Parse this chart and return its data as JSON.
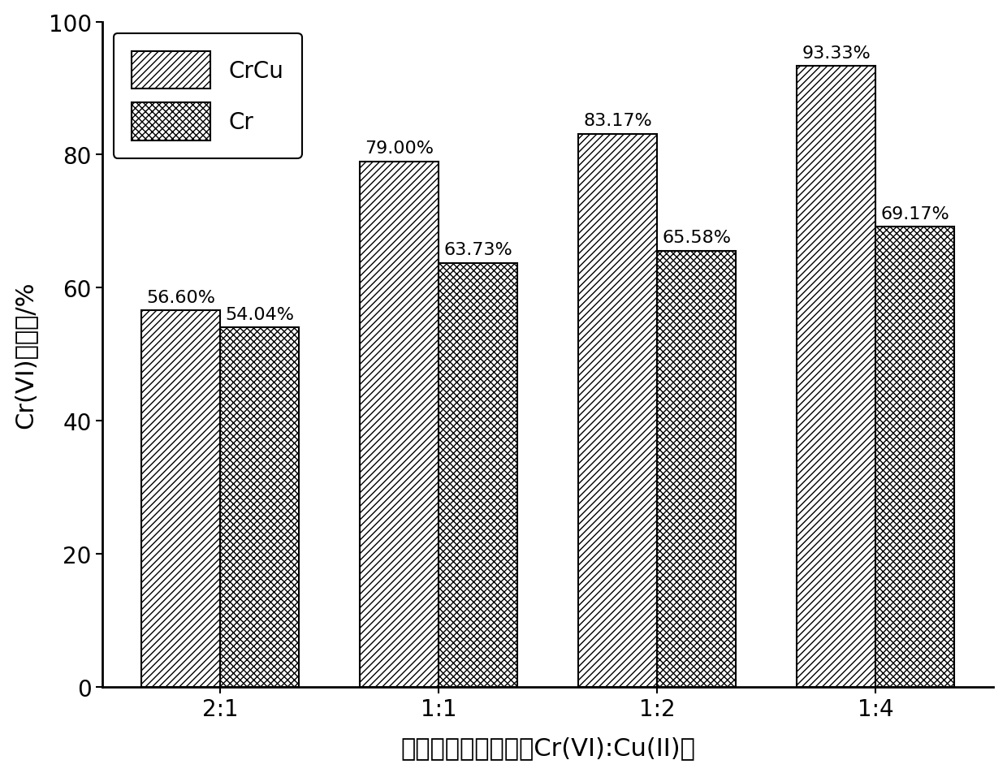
{
  "categories": [
    "2:1",
    "1:1",
    "1:2",
    "1:4"
  ],
  "crcu_values": [
    56.6,
    79.0,
    83.17,
    93.33
  ],
  "cr_values": [
    54.04,
    63.73,
    65.58,
    69.17
  ],
  "crcu_labels": [
    "56.60%",
    "79.00%",
    "83.17%",
    "93.33%"
  ],
  "cr_labels": [
    "54.04%",
    "63.73%",
    "65.58%",
    "69.17%"
  ],
  "ylabel": "Cr(VI)去除率/%",
  "xlabel": "复合废水浓度配比（Cr(VI):Cu(II)）",
  "ylim": [
    0,
    100
  ],
  "yticks": [
    0,
    20,
    40,
    60,
    80,
    100
  ],
  "legend_labels": [
    "CrCu",
    "Cr"
  ],
  "facecolor": "white",
  "edgecolor": "black",
  "hatch_crcu": "////",
  "hatch_cr": "xxxx",
  "fontsize_tick": 20,
  "fontsize_label": 22,
  "fontsize_annot": 16,
  "fontsize_legend": 20
}
